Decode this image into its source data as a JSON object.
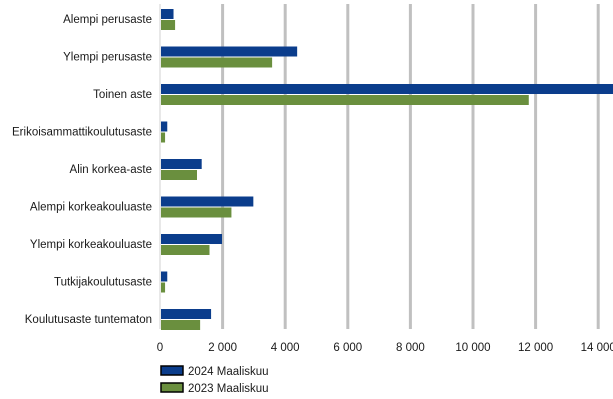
{
  "chart_data": {
    "type": "bar",
    "orientation": "horizontal",
    "categories": [
      "Alempi perusaste",
      "Ylempi perusaste",
      "Toinen aste",
      "Erikoisammattikoulutusaste",
      "Alin korkea-aste",
      "Alempi korkeakouluaste",
      "Ylempi korkeakouluaste",
      "Tutkijakoulutusaste",
      "Koulutusaste tuntematon"
    ],
    "series": [
      {
        "name": "2024 Maaliskuu",
        "color": "#0b3d8c",
        "values": [
          400,
          4350,
          14600,
          200,
          1300,
          2950,
          1950,
          200,
          1600
        ]
      },
      {
        "name": "2023 Maaliskuu",
        "color": "#6a8f3e",
        "values": [
          450,
          3550,
          11750,
          130,
          1150,
          2250,
          1550,
          130,
          1250
        ]
      }
    ],
    "xlim": [
      0,
      14600
    ],
    "x_ticks": [
      0,
      2000,
      4000,
      6000,
      8000,
      10000,
      12000,
      14000
    ],
    "x_tick_labels": [
      "0",
      "2 000",
      "4 000",
      "6 000",
      "8 000",
      "10 000",
      "12 000",
      "14 000"
    ],
    "grid": true,
    "legend_position": "bottom-left"
  }
}
